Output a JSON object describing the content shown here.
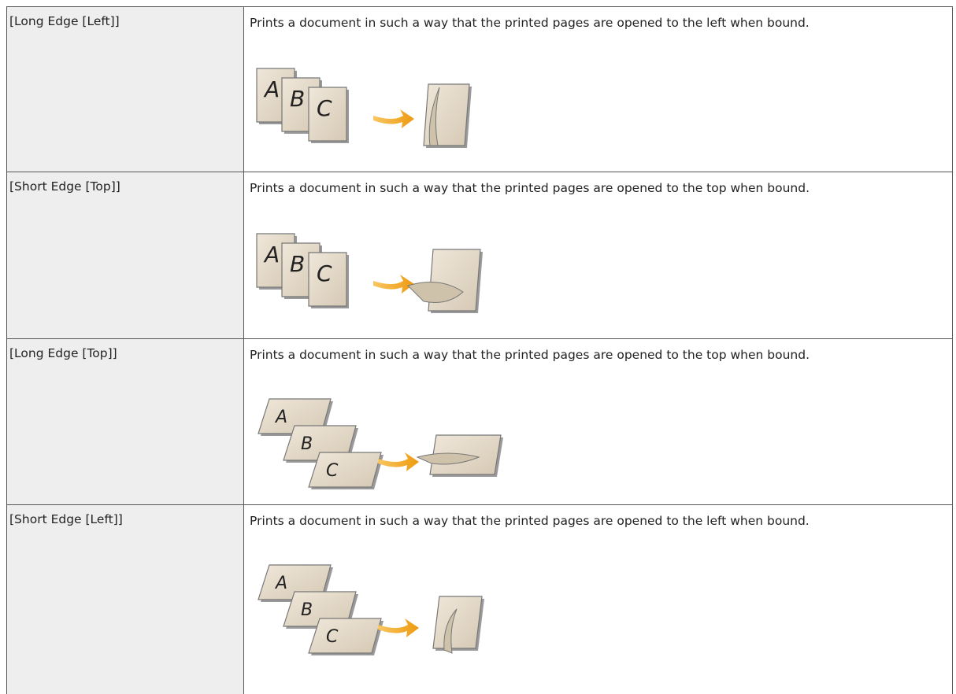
{
  "table": {
    "rows": [
      {
        "setting": "[Long Edge [Left]]",
        "description": "Prints a document in such a way that the printed pages are opened to the left when bound.",
        "figure": [
          "A",
          "B",
          "C"
        ]
      },
      {
        "setting": "[Short Edge [Top]]",
        "description": "Prints a document in such a way that the printed pages are opened to the top when bound.",
        "figure": [
          "A",
          "B",
          "C"
        ]
      },
      {
        "setting": "[Long Edge [Top]]",
        "description": "Prints a document in such a way that the printed pages are opened to the top when bound.",
        "figure": [
          "A",
          "B",
          "C"
        ]
      },
      {
        "setting": "[Short Edge [Left]]",
        "description": "Prints a document in such a way that the printed pages are opened to the left when bound.",
        "figure": [
          "A",
          "B",
          "C"
        ]
      }
    ]
  }
}
